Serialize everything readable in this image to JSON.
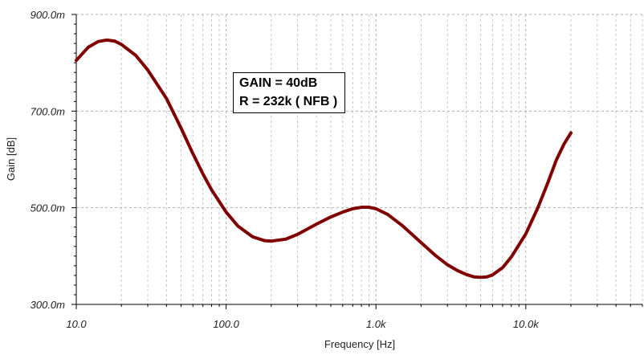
{
  "chart_data": {
    "type": "line",
    "xlabel": "Frequency [Hz]",
    "ylabel": "Gain [dB]",
    "x_scale": "log",
    "xlim": [
      10,
      60000
    ],
    "ylim": [
      0.3,
      0.9
    ],
    "x_ticks": [
      {
        "value": 10,
        "label": "10.0"
      },
      {
        "value": 100,
        "label": "100.0"
      },
      {
        "value": 1000,
        "label": "1.0k"
      },
      {
        "value": 10000,
        "label": "10.0k"
      }
    ],
    "y_ticks": [
      {
        "value": 0.3,
        "label": "300.0m"
      },
      {
        "value": 0.5,
        "label": "500.0m"
      },
      {
        "value": 0.7,
        "label": "700.0m"
      },
      {
        "value": 0.9,
        "label": "900.0m"
      }
    ],
    "grid": true,
    "annotation": [
      "GAIN = 40dB",
      "R = 232k ( NFB )"
    ],
    "series": [
      {
        "color": "#800000",
        "x": [
          10,
          12,
          14,
          16,
          18,
          20,
          25,
          30,
          40,
          50,
          60,
          70,
          80,
          100,
          120,
          150,
          180,
          200,
          250,
          300,
          400,
          500,
          600,
          700,
          800,
          900,
          1000,
          1200,
          1500,
          2000,
          2500,
          3000,
          3500,
          4000,
          4500,
          5000,
          5500,
          6000,
          7000,
          8000,
          10000,
          12000,
          14000,
          16000,
          18000,
          20000
        ],
        "y": [
          0.805,
          0.832,
          0.844,
          0.847,
          0.845,
          0.838,
          0.815,
          0.785,
          0.726,
          0.665,
          0.612,
          0.57,
          0.537,
          0.491,
          0.462,
          0.44,
          0.432,
          0.431,
          0.435,
          0.445,
          0.466,
          0.481,
          0.491,
          0.498,
          0.501,
          0.501,
          0.498,
          0.486,
          0.463,
          0.428,
          0.401,
          0.382,
          0.37,
          0.362,
          0.357,
          0.356,
          0.357,
          0.361,
          0.376,
          0.398,
          0.446,
          0.499,
          0.551,
          0.599,
          0.632,
          0.655
        ]
      }
    ]
  }
}
